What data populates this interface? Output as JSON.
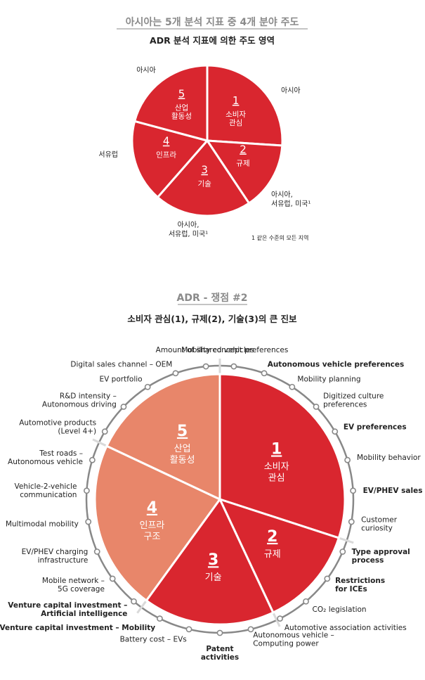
{
  "top": {
    "title": "아시아는 5개 분석 지표 중 4개 분야 주도",
    "subtitle": "ADR 분석 지표에 의한 주도 영역",
    "footnote": "1 같은 수준의 모든 지역"
  },
  "bottom": {
    "title": "ADR - 쟁점 #2",
    "subtitle": "소비자 관심(1), 규제(2), 기술(3)의 큰 진보"
  },
  "colors": {
    "red": "#d9262f",
    "salmon": "#e8866a",
    "gray": "#888888",
    "title_gray": "#8a8a8a"
  },
  "chart_data": [
    {
      "type": "pie",
      "title": "ADR 분석 지표에 의한 주도 영역",
      "slices": [
        {
          "num": "1",
          "label": [
            "소비자",
            "관심"
          ],
          "region": [
            "아시아"
          ],
          "value": 25,
          "color": "#d9262f"
        },
        {
          "num": "2",
          "label": [
            "규제"
          ],
          "region": [
            "아시아,",
            "서유럽, 미국¹"
          ],
          "value": 14,
          "color": "#d9262f"
        },
        {
          "num": "3",
          "label": [
            "기술"
          ],
          "region": [
            "아시아,",
            "서유럽, 미국¹"
          ],
          "value": 20,
          "color": "#d9262f"
        },
        {
          "num": "4",
          "label": [
            "인프라"
          ],
          "region": [
            "서유럽"
          ],
          "value": 17,
          "color": "#d9262f"
        },
        {
          "num": "5",
          "label": [
            "산업",
            "활동성"
          ],
          "region": [
            "아시아"
          ],
          "value": 20,
          "color": "#d9262f"
        }
      ]
    },
    {
      "type": "pie",
      "title": "소비자 관심(1), 규제(2), 기술(3)의 큰 진보",
      "slices": [
        {
          "num": "1",
          "label": [
            "소비자",
            "관심"
          ],
          "value": 30,
          "color": "#d9262f"
        },
        {
          "num": "2",
          "label": [
            "규제"
          ],
          "value": 13,
          "color": "#d9262f"
        },
        {
          "num": "3",
          "label": [
            "기술"
          ],
          "value": 17,
          "color": "#d9262f"
        },
        {
          "num": "4",
          "label": [
            "인프라",
            "구조"
          ],
          "value": 22,
          "color": "#e8866a"
        },
        {
          "num": "5",
          "label": [
            "산업",
            "활동성"
          ],
          "value": 18,
          "color": "#e8866a"
        }
      ],
      "indicators": [
        {
          "text": [
            "Mobility concept preferences"
          ],
          "bold": false
        },
        {
          "text": [
            "Autonomous vehicle preferences"
          ],
          "bold": true
        },
        {
          "text": [
            "Mobility planning"
          ],
          "bold": false
        },
        {
          "text": [
            "Digitized culture",
            "preferences"
          ],
          "bold": false
        },
        {
          "text": [
            "EV preferences"
          ],
          "bold": true
        },
        {
          "text": [
            "Mobility behavior"
          ],
          "bold": false
        },
        {
          "text": [
            "EV/PHEV sales"
          ],
          "bold": true
        },
        {
          "text": [
            "Customer",
            "curiosity"
          ],
          "bold": false
        },
        {
          "text": [
            "Type approval",
            "process"
          ],
          "bold": true
        },
        {
          "text": [
            "Restrictions",
            "for ICEs"
          ],
          "bold": true
        },
        {
          "text": [
            "CO₂ legislation"
          ],
          "bold": false
        },
        {
          "text": [
            "Automotive association activities"
          ],
          "bold": false
        },
        {
          "text": [
            "Autonomous vehicle –",
            "Computing power"
          ],
          "bold": false
        },
        {
          "text": [
            "Patent",
            "activities"
          ],
          "bold": true
        },
        {
          "text": [
            "Battery cost – EVs"
          ],
          "bold": false
        },
        {
          "text": [
            "Venture capital investment – Mobility"
          ],
          "bold": true
        },
        {
          "text": [
            "Venture capital investment –",
            "Artificial intelligence"
          ],
          "bold": true
        },
        {
          "text": [
            "Mobile network –",
            "5G coverage"
          ],
          "bold": false
        },
        {
          "text": [
            "EV/PHEV charging",
            "infrastructure"
          ],
          "bold": false
        },
        {
          "text": [
            "Multimodal mobility"
          ],
          "bold": false
        },
        {
          "text": [
            "Vehicle-2-vehicle",
            "communication"
          ],
          "bold": false
        },
        {
          "text": [
            "Test roads –",
            "Autonomous vehicle"
          ],
          "bold": false
        },
        {
          "text": [
            "Automotive products",
            "(Level 4+)"
          ],
          "bold": false
        },
        {
          "text": [
            "R&D intensity –",
            "Autonomous driving"
          ],
          "bold": false
        },
        {
          "text": [
            "EV portfolio"
          ],
          "bold": false
        },
        {
          "text": [
            "Digital sales channel – OEM"
          ],
          "bold": false
        },
        {
          "text": [
            "Amount of shared vehicles"
          ],
          "bold": false
        }
      ]
    }
  ]
}
